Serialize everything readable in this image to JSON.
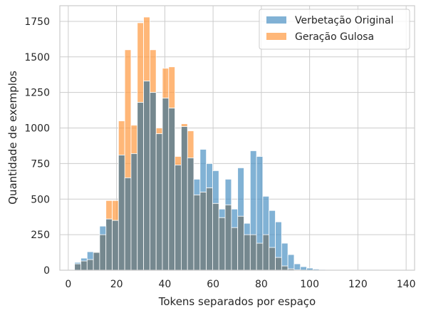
{
  "chart_data": {
    "type": "bar",
    "xlabel": "Tokens separados por espaço",
    "ylabel": "Quantidade de exemplos",
    "xlim": [
      -3.5,
      143.5
    ],
    "ylim": [
      0,
      1860
    ],
    "xticks": [
      "0",
      "20",
      "40",
      "60",
      "80",
      "100",
      "120",
      "140"
    ],
    "yticks": [
      "0",
      "250",
      "500",
      "750",
      "1000",
      "1250",
      "1500",
      "1750"
    ],
    "grid": true,
    "legend_position": "top-right",
    "bin_width": 2.6,
    "bin_starts": [
      2.6,
      5.2,
      7.8,
      10.4,
      13.0,
      15.6,
      18.2,
      20.8,
      23.4,
      26.0,
      28.6,
      31.2,
      33.8,
      36.4,
      39.0,
      41.6,
      44.2,
      46.8,
      49.4,
      52.0,
      54.6,
      57.2,
      59.8,
      62.4,
      65.0,
      67.6,
      70.2,
      72.8,
      75.4,
      78.0,
      80.6,
      83.2,
      85.8,
      88.4,
      91.0,
      93.6,
      96.2,
      98.8,
      101.4,
      104.0,
      106.6,
      109.2,
      111.8,
      114.4,
      117.0,
      119.6,
      122.2,
      124.8,
      127.4,
      130.0,
      132.6,
      135.2
    ],
    "series": [
      {
        "name": "Verbetação Original",
        "color": "#4c92c3",
        "values": [
          55,
          85,
          130,
          125,
          310,
          360,
          350,
          810,
          650,
          820,
          1180,
          1330,
          1250,
          960,
          1210,
          1140,
          740,
          1010,
          790,
          640,
          850,
          750,
          700,
          430,
          640,
          430,
          720,
          330,
          840,
          800,
          520,
          420,
          340,
          190,
          110,
          45,
          25,
          15,
          8,
          5,
          4,
          3,
          2,
          2,
          1,
          1,
          1,
          1,
          0,
          0,
          0,
          0
        ]
      },
      {
        "name": "Geração Gulosa",
        "color": "#ff983e",
        "values": [
          45,
          65,
          75,
          130,
          250,
          490,
          490,
          1050,
          1550,
          1020,
          1740,
          1780,
          1550,
          1000,
          1420,
          1430,
          800,
          1030,
          980,
          530,
          550,
          580,
          470,
          370,
          460,
          300,
          380,
          250,
          250,
          190,
          250,
          160,
          90,
          30,
          10,
          3,
          1,
          0,
          0,
          0,
          0,
          0,
          0,
          0,
          0,
          0,
          0,
          0,
          0,
          0,
          0,
          0
        ]
      }
    ]
  }
}
